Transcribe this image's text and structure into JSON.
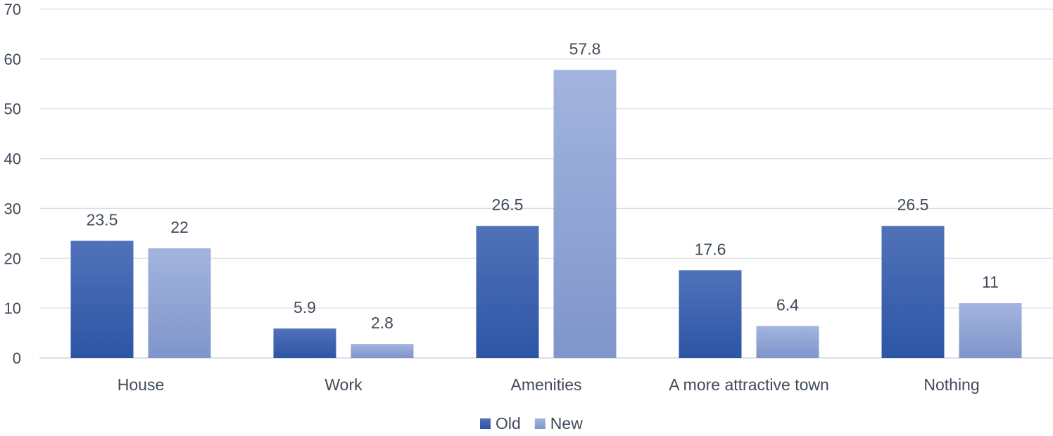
{
  "chart_data": {
    "type": "bar",
    "title": "",
    "xlabel": "",
    "ylabel": "",
    "categories": [
      "House",
      "Work",
      "Amenities",
      "A more attractive town",
      "Nothing"
    ],
    "series": [
      {
        "name": "Old",
        "values": [
          23.5,
          5.9,
          26.5,
          17.6,
          26.5
        ],
        "labels": [
          "23.5",
          "5.9",
          "26.5",
          "17.6",
          "26.5"
        ],
        "color_top": "#5072b9",
        "color_bottom": "#2d55a6"
      },
      {
        "name": "New",
        "values": [
          22,
          2.8,
          57.8,
          6.4,
          11
        ],
        "labels": [
          "22",
          "2.8",
          "57.8",
          "6.4",
          "11"
        ],
        "color_top": "#a3b4de",
        "color_bottom": "#7f95cb"
      }
    ],
    "ylim": [
      0,
      70
    ],
    "yticks": [
      "0",
      "10",
      "20",
      "30",
      "40",
      "50",
      "60",
      "70"
    ],
    "grid": true,
    "legend_position": "bottom-center"
  }
}
